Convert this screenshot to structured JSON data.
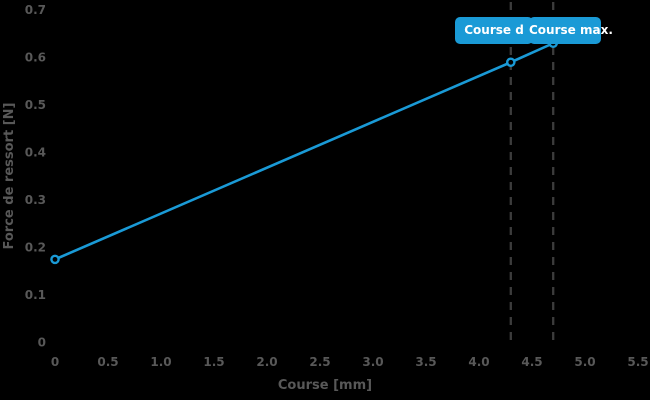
{
  "chart_data": {
    "type": "line",
    "title": "",
    "xlabel": "Course [mm]",
    "ylabel": "Force de ressort [N]",
    "xlim": [
      0,
      5.5
    ],
    "ylim": [
      0,
      0.7
    ],
    "grid": false,
    "legend": "none",
    "background_color": "#000000",
    "tick_label_color": "#585858",
    "line_color": "#1a9ad6",
    "dashed_line_color": "#3c3c3c",
    "x_ticks": [
      0,
      0.5,
      1.0,
      1.5,
      2.0,
      2.5,
      3.0,
      3.5,
      4.0,
      4.5,
      5.0,
      5.5
    ],
    "x_tick_labels": [
      "0",
      "0.5",
      "1.0",
      "1.5",
      "2.0",
      "2.5",
      "3.0",
      "3.5",
      "4.0",
      "4.5",
      "5.0",
      "5.5"
    ],
    "y_ticks": [
      0,
      0.1,
      0.2,
      0.3,
      0.4,
      0.5,
      0.6,
      0.7
    ],
    "y_tick_labels": [
      "0",
      "0.1",
      "0.2",
      "0.3",
      "0.4",
      "0.5",
      "0.6",
      "0.7"
    ],
    "series": [
      {
        "name": "Force de ressort",
        "x": [
          0,
          4.3,
          4.7
        ],
        "y": [
          0.175,
          0.59,
          0.63
        ],
        "color": "#1a9ad6",
        "marker": "open-circle"
      }
    ],
    "annotations": [
      {
        "label": "Course d",
        "x": 4.3,
        "box_color": "#1a9ad6",
        "text_color": "#ffffff"
      },
      {
        "label": "Course max.",
        "x": 4.7,
        "box_color": "#1a9ad6",
        "text_color": "#ffffff"
      }
    ]
  }
}
